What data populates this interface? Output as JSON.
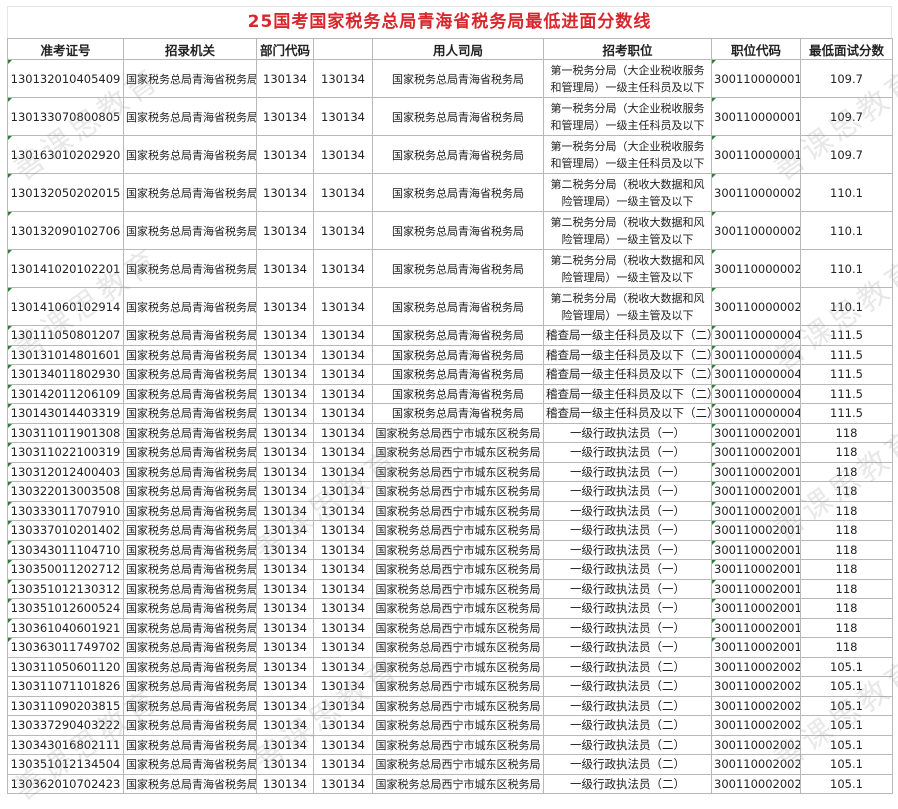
{
  "title": "25国考国家税务总局青海省税务局最低进面分数线",
  "watermark": "善课思教育",
  "headers": [
    "准考证号",
    "招录机关",
    "部门代码",
    "",
    "用人司局",
    "招考职位",
    "职位代码",
    "最低面试分数"
  ],
  "rows": [
    [
      "130132010405409",
      "国家税务总局青海省税务局",
      "130134",
      "130134",
      "国家税务总局青海省税务局",
      "第一税务分局（大企业税收服务和管理局）一级主任科员及以下",
      "300110000001",
      "109.7"
    ],
    [
      "130133070800805",
      "国家税务总局青海省税务局",
      "130134",
      "130134",
      "国家税务总局青海省税务局",
      "第一税务分局（大企业税收服务和管理局）一级主任科员及以下",
      "300110000001",
      "109.7"
    ],
    [
      "130163010202920",
      "国家税务总局青海省税务局",
      "130134",
      "130134",
      "国家税务总局青海省税务局",
      "第一税务分局（大企业税收服务和管理局）一级主任科员及以下",
      "300110000001",
      "109.7"
    ],
    [
      "130132050202015",
      "国家税务总局青海省税务局",
      "130134",
      "130134",
      "国家税务总局青海省税务局",
      "第二税务分局（税收大数据和风险管理局）一级主管及以下",
      "300110000002",
      "110.1"
    ],
    [
      "130132090102706",
      "国家税务总局青海省税务局",
      "130134",
      "130134",
      "国家税务总局青海省税务局",
      "第二税务分局（税收大数据和风险管理局）一级主管及以下",
      "300110000002",
      "110.1"
    ],
    [
      "130141020102201",
      "国家税务总局青海省税务局",
      "130134",
      "130134",
      "国家税务总局青海省税务局",
      "第二税务分局（税收大数据和风险管理局）一级主管及以下",
      "300110000002",
      "110.1"
    ],
    [
      "130141060102914",
      "国家税务总局青海省税务局",
      "130134",
      "130134",
      "国家税务总局青海省税务局",
      "第二税务分局（税收大数据和风险管理局）一级主管及以下",
      "300110000002",
      "110.1"
    ],
    [
      "130111050801207",
      "国家税务总局青海省税务局",
      "130134",
      "130134",
      "国家税务总局青海省税务局",
      "稽查局一级主任科员及以下（二）",
      "300110000004",
      "111.5"
    ],
    [
      "130131014801601",
      "国家税务总局青海省税务局",
      "130134",
      "130134",
      "国家税务总局青海省税务局",
      "稽查局一级主任科员及以下（二）",
      "300110000004",
      "111.5"
    ],
    [
      "130134011802930",
      "国家税务总局青海省税务局",
      "130134",
      "130134",
      "国家税务总局青海省税务局",
      "稽查局一级主任科员及以下（二）",
      "300110000004",
      "111.5"
    ],
    [
      "130142011206109",
      "国家税务总局青海省税务局",
      "130134",
      "130134",
      "国家税务总局青海省税务局",
      "稽查局一级主任科员及以下（二）",
      "300110000004",
      "111.5"
    ],
    [
      "130143014403319",
      "国家税务总局青海省税务局",
      "130134",
      "130134",
      "国家税务总局青海省税务局",
      "稽查局一级主任科员及以下（二）",
      "300110000004",
      "111.5"
    ],
    [
      "130311011901308",
      "国家税务总局青海省税务局",
      "130134",
      "130134",
      "国家税务总局西宁市城东区税务局",
      "一级行政执法员（一）",
      "300110002001",
      "118"
    ],
    [
      "130311022100319",
      "国家税务总局青海省税务局",
      "130134",
      "130134",
      "国家税务总局西宁市城东区税务局",
      "一级行政执法员（一）",
      "300110002001",
      "118"
    ],
    [
      "130312012400403",
      "国家税务总局青海省税务局",
      "130134",
      "130134",
      "国家税务总局西宁市城东区税务局",
      "一级行政执法员（一）",
      "300110002001",
      "118"
    ],
    [
      "130322013003508",
      "国家税务总局青海省税务局",
      "130134",
      "130134",
      "国家税务总局西宁市城东区税务局",
      "一级行政执法员（一）",
      "300110002001",
      "118"
    ],
    [
      "130333011707910",
      "国家税务总局青海省税务局",
      "130134",
      "130134",
      "国家税务总局西宁市城东区税务局",
      "一级行政执法员（一）",
      "300110002001",
      "118"
    ],
    [
      "130337010201402",
      "国家税务总局青海省税务局",
      "130134",
      "130134",
      "国家税务总局西宁市城东区税务局",
      "一级行政执法员（一）",
      "300110002001",
      "118"
    ],
    [
      "130343011104710",
      "国家税务总局青海省税务局",
      "130134",
      "130134",
      "国家税务总局西宁市城东区税务局",
      "一级行政执法员（一）",
      "300110002001",
      "118"
    ],
    [
      "130350011202712",
      "国家税务总局青海省税务局",
      "130134",
      "130134",
      "国家税务总局西宁市城东区税务局",
      "一级行政执法员（一）",
      "300110002001",
      "118"
    ],
    [
      "130351012130312",
      "国家税务总局青海省税务局",
      "130134",
      "130134",
      "国家税务总局西宁市城东区税务局",
      "一级行政执法员（一）",
      "300110002001",
      "118"
    ],
    [
      "130351012600524",
      "国家税务总局青海省税务局",
      "130134",
      "130134",
      "国家税务总局西宁市城东区税务局",
      "一级行政执法员（一）",
      "300110002001",
      "118"
    ],
    [
      "130361040601921",
      "国家税务总局青海省税务局",
      "130134",
      "130134",
      "国家税务总局西宁市城东区税务局",
      "一级行政执法员（一）",
      "300110002001",
      "118"
    ],
    [
      "130363011749702",
      "国家税务总局青海省税务局",
      "130134",
      "130134",
      "国家税务总局西宁市城东区税务局",
      "一级行政执法员（一）",
      "300110002001",
      "118"
    ],
    [
      "130311050601120",
      "国家税务总局青海省税务局",
      "130134",
      "130134",
      "国家税务总局西宁市城东区税务局",
      "一级行政执法员（二）",
      "300110002002",
      "105.1"
    ],
    [
      "130311071101826",
      "国家税务总局青海省税务局",
      "130134",
      "130134",
      "国家税务总局西宁市城东区税务局",
      "一级行政执法员（二）",
      "300110002002",
      "105.1"
    ],
    [
      "130311090203815",
      "国家税务总局青海省税务局",
      "130134",
      "130134",
      "国家税务总局西宁市城东区税务局",
      "一级行政执法员（二）",
      "300110002002",
      "105.1"
    ],
    [
      "130337290403222",
      "国家税务总局青海省税务局",
      "130134",
      "130134",
      "国家税务总局西宁市城东区税务局",
      "一级行政执法员（二）",
      "300110002002",
      "105.1"
    ],
    [
      "130343016802111",
      "国家税务总局青海省税务局",
      "130134",
      "130134",
      "国家税务总局西宁市城东区税务局",
      "一级行政执法员（二）",
      "300110002002",
      "105.1"
    ],
    [
      "130351012134504",
      "国家税务总局青海省税务局",
      "130134",
      "130134",
      "国家税务总局西宁市城东区税务局",
      "一级行政执法员（二）",
      "300110002002",
      "105.1"
    ],
    [
      "130362010702423",
      "国家税务总局青海省税务局",
      "130134",
      "130134",
      "国家税务总局西宁市城东区税务局",
      "一级行政执法员（二）",
      "300110002002",
      "105.1"
    ]
  ]
}
